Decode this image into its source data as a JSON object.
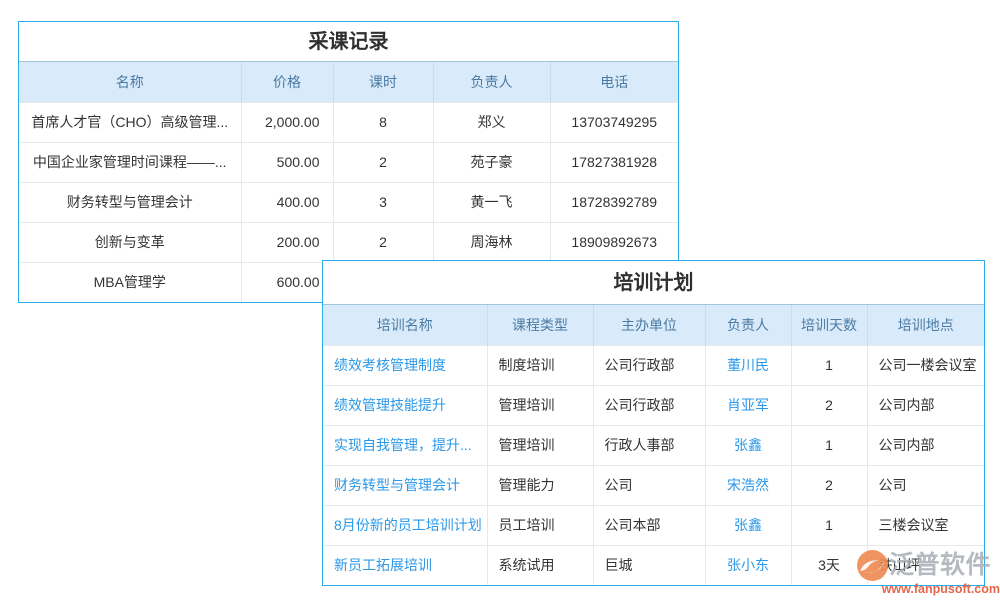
{
  "tables": {
    "purchase": {
      "title": "采课记录",
      "columns": [
        "名称",
        "价格",
        "课时",
        "负责人",
        "电话"
      ],
      "rows": [
        [
          "首席人才官（CHO）高级管理...",
          "2,000.00",
          "8",
          "郑义",
          "13703749295"
        ],
        [
          "中国企业家管理时间课程——...",
          "500.00",
          "2",
          "苑子豪",
          "17827381928"
        ],
        [
          "财务转型与管理会计",
          "400.00",
          "3",
          "黄一飞",
          "18728392789"
        ],
        [
          "创新与变革",
          "200.00",
          "2",
          "周海林",
          "18909892673"
        ],
        [
          "MBA管理学",
          "600.00",
          "",
          "",
          ""
        ]
      ]
    },
    "training": {
      "title": "培训计划",
      "columns": [
        "培训名称",
        "课程类型",
        "主办单位",
        "负责人",
        "培训天数",
        "培训地点"
      ],
      "rows": [
        [
          "绩效考核管理制度",
          "制度培训",
          "公司行政部",
          "董川民",
          "1",
          "公司一楼会议室"
        ],
        [
          "绩效管理技能提升",
          "管理培训",
          "公司行政部",
          "肖亚军",
          "2",
          "公司内部"
        ],
        [
          "实现自我管理，提升...",
          "管理培训",
          "行政人事部",
          "张鑫",
          "1",
          "公司内部"
        ],
        [
          "财务转型与管理会计",
          "管理能力",
          "公司",
          "宋浩然",
          "2",
          "公司"
        ],
        [
          "8月份新的员工培训计划",
          "员工培训",
          "公司本部",
          "张鑫",
          "1",
          "三楼会议室"
        ],
        [
          "新员工拓展培训",
          "系统试用",
          "巨城",
          "张小东",
          "3天",
          "铁山坪"
        ]
      ]
    }
  },
  "watermark": {
    "brand": "泛普软件",
    "url": "www.fanpusoft.com"
  },
  "colors": {
    "table_border": "#29ade9",
    "header_bg": "#d9eafa",
    "header_text": "#4b7ba3",
    "link": "#2b98e8",
    "watermark_url": "#e4674b",
    "logo_orange": "#ef8a50"
  }
}
